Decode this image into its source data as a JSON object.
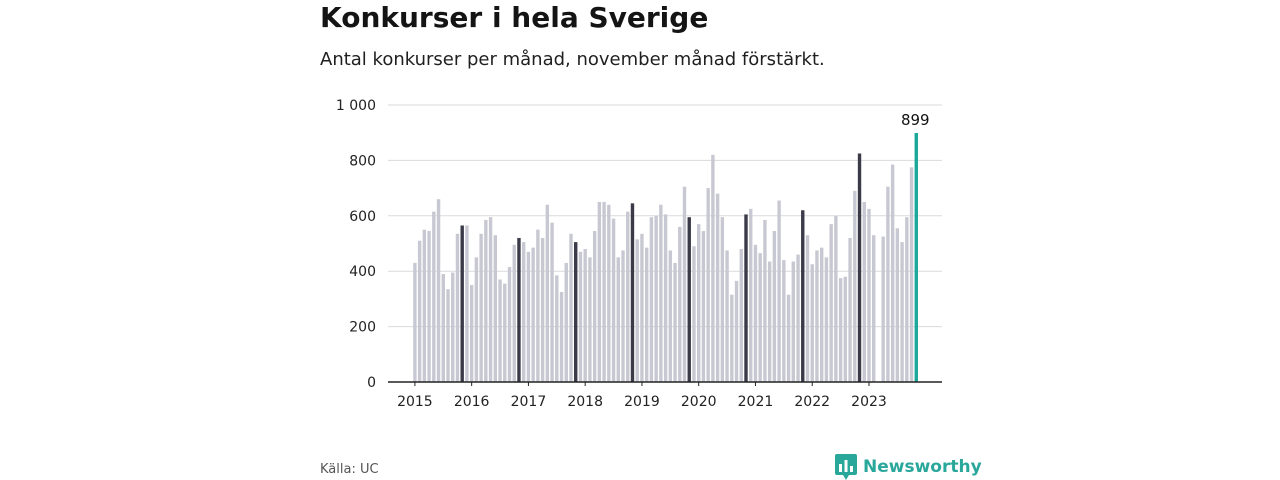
{
  "title": "Konkurser i hela Sverige",
  "subtitle": "Antal konkurser per månad, november månad förstärkt.",
  "source": "Källa: UC",
  "brand": "Newsworthy",
  "colors": {
    "bar": "#c8c8d2",
    "highlight": "#3a3a48",
    "latest": "#1aa89a",
    "grid": "#d9d9df",
    "axis": "#222222",
    "brand": "#2aa79b"
  },
  "icons": {
    "logo": "bar-chart-speech-bubble-icon"
  },
  "chart_data": {
    "type": "bar",
    "title": "Konkurser i hela Sverige",
    "subtitle": "Antal konkurser per månad, november månad förstärkt.",
    "xlabel": "",
    "ylabel": "",
    "ylim": [
      0,
      1000
    ],
    "yticks": [
      0,
      200,
      400,
      600,
      800,
      1000
    ],
    "ytick_labels": [
      "0",
      "200",
      "400",
      "600",
      "800",
      "1 000"
    ],
    "xtick_labels": [
      "2015",
      "2016",
      "2017",
      "2018",
      "2019",
      "2020",
      "2021",
      "2022",
      "2023"
    ],
    "grid": true,
    "highlight_month": "November",
    "data_label": "899",
    "years": [
      {
        "year": "2015",
        "values": [
          430,
          510,
          550,
          545,
          615,
          660,
          390,
          335,
          395,
          535,
          565,
          565
        ]
      },
      {
        "year": "2016",
        "values": [
          350,
          450,
          535,
          585,
          595,
          530,
          370,
          355,
          415,
          495,
          520,
          505
        ]
      },
      {
        "year": "2017",
        "values": [
          470,
          485,
          550,
          520,
          640,
          575,
          385,
          325,
          430,
          535,
          505,
          470
        ]
      },
      {
        "year": "2018",
        "values": [
          480,
          450,
          545,
          650,
          650,
          640,
          590,
          450,
          475,
          615,
          645,
          515
        ]
      },
      {
        "year": "2019",
        "values": [
          535,
          485,
          595,
          600,
          640,
          605,
          475,
          430,
          560,
          705,
          595,
          490
        ]
      },
      {
        "year": "2020",
        "values": [
          570,
          545,
          700,
          820,
          680,
          595,
          475,
          315,
          365,
          480,
          605,
          625
        ]
      },
      {
        "year": "2021",
        "values": [
          495,
          465,
          585,
          435,
          545,
          655,
          440,
          315,
          435,
          460,
          620,
          530
        ]
      },
      {
        "year": "2022",
        "values": [
          425,
          475,
          485,
          450,
          570,
          600,
          375,
          380,
          520,
          690,
          825,
          650
        ]
      },
      {
        "year": "2023",
        "values": [
          625,
          530,
          0,
          525,
          705,
          785,
          555,
          505,
          595,
          775,
          899
        ]
      }
    ]
  }
}
